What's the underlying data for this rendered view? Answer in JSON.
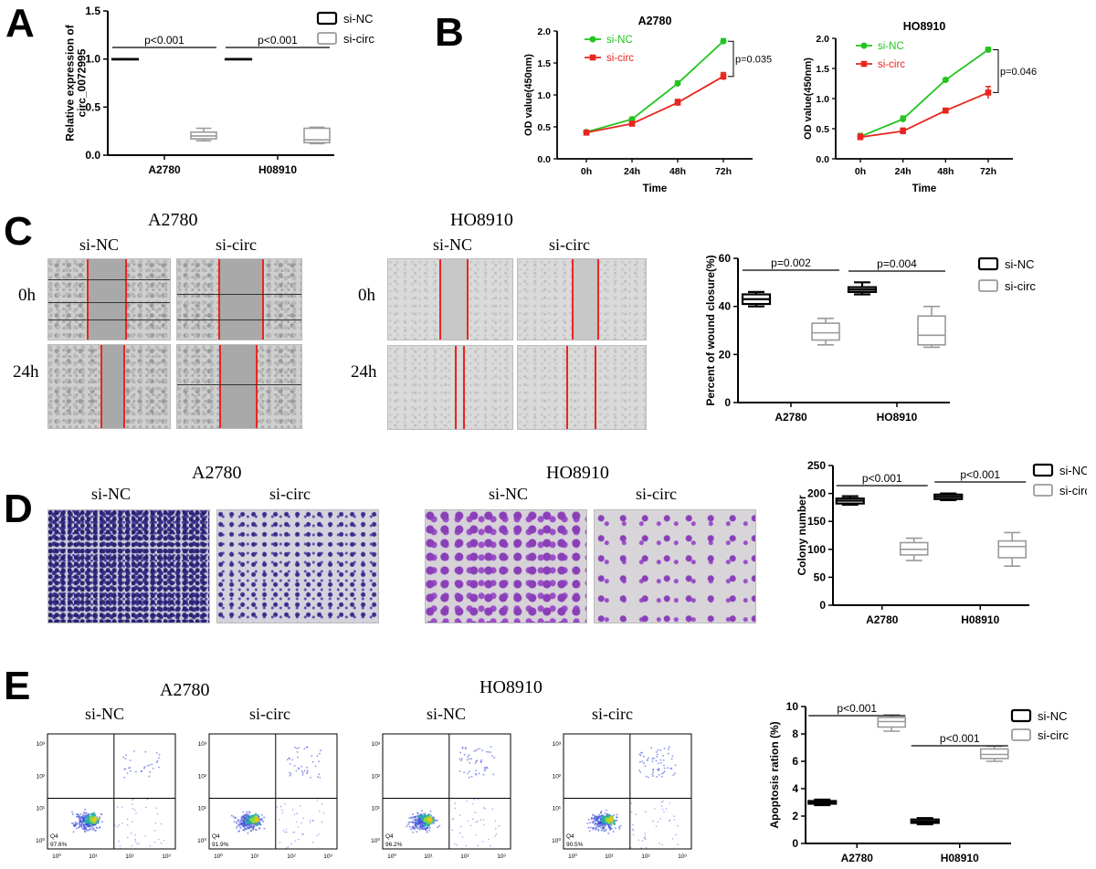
{
  "panels": {
    "A": "A",
    "B": "B",
    "C": "C",
    "D": "D",
    "E": "E"
  },
  "labels": {
    "a2780": "A2780",
    "ho8910": "HO8910",
    "si_nc": "si-NC",
    "si_circ": "si-circ",
    "t0h": "0h",
    "t24h": "24h"
  },
  "chart_data": [
    {
      "id": "A",
      "type": "box",
      "ylabel": "Relative expression of circ_0072995",
      "ylim": [
        0,
        1.5
      ],
      "yticks": [
        "0.0",
        "0.5",
        "1.0",
        "1.5"
      ],
      "categories": [
        "A2780",
        "H08910"
      ],
      "legend": [
        "si-NC",
        "si-circ"
      ],
      "series": [
        {
          "name": "si-NC",
          "boxes": [
            [
              1.0,
              1.0,
              1.0,
              1.0,
              1.0
            ],
            [
              1.0,
              1.0,
              1.0,
              1.0,
              1.0
            ]
          ]
        },
        {
          "name": "si-circ",
          "boxes": [
            [
              0.15,
              0.17,
              0.2,
              0.24,
              0.28
            ],
            [
              0.12,
              0.13,
              0.16,
              0.28,
              0.29
            ]
          ]
        }
      ],
      "annotations": [
        "p<0.001",
        "p<0.001"
      ]
    },
    {
      "id": "B1",
      "type": "line",
      "title": "A2780",
      "xlabel": "Time",
      "ylabel": "OD value(450nm)",
      "categories": [
        "0h",
        "24h",
        "48h",
        "72h"
      ],
      "yticks": [
        "0.0",
        "0.5",
        "1.0",
        "1.5",
        "2.0"
      ],
      "ylim": [
        0,
        2.0
      ],
      "series": [
        {
          "name": "si-NC",
          "color": "#22c41f",
          "values": [
            0.42,
            0.62,
            1.18,
            1.84
          ],
          "err": [
            0.02,
            0.03,
            0.04,
            0.04
          ]
        },
        {
          "name": "si-circ",
          "color": "#e8261f",
          "values": [
            0.41,
            0.55,
            0.88,
            1.29
          ],
          "err": [
            0.02,
            0.03,
            0.05,
            0.06
          ]
        }
      ],
      "annotation": "p=0.035"
    },
    {
      "id": "B2",
      "type": "line",
      "title": "HO8910",
      "xlabel": "Time",
      "ylabel": "OD value(450nm)",
      "categories": [
        "0h",
        "24h",
        "48h",
        "72h"
      ],
      "yticks": [
        "0.0",
        "0.5",
        "1.0",
        "1.5",
        "2.0"
      ],
      "ylim": [
        0,
        2.0
      ],
      "series": [
        {
          "name": "si-NC",
          "color": "#22c41f",
          "values": [
            0.37,
            0.66,
            1.31,
            1.81
          ],
          "err": [
            0.05,
            0.05,
            0.03,
            0.04
          ]
        },
        {
          "name": "si-circ",
          "color": "#e8261f",
          "values": [
            0.36,
            0.46,
            0.8,
            1.1
          ],
          "err": [
            0.05,
            0.05,
            0.04,
            0.1
          ]
        }
      ],
      "annotation": "p=0.046"
    },
    {
      "id": "C",
      "type": "box",
      "ylabel": "Percent of wound closure(%)",
      "ylim": [
        0,
        60
      ],
      "yticks": [
        "0",
        "20",
        "40",
        "60"
      ],
      "categories": [
        "A2780",
        "HO8910"
      ],
      "legend": [
        "si-NC",
        "si-circ"
      ],
      "series": [
        {
          "name": "si-NC",
          "boxes": [
            [
              40,
              41,
              43,
              45,
              46
            ],
            [
              45,
              46,
              47,
              48,
              50
            ]
          ]
        },
        {
          "name": "si-circ",
          "boxes": [
            [
              24,
              26,
              29,
              33,
              35
            ],
            [
              23,
              24,
              28,
              36,
              40
            ]
          ]
        }
      ],
      "annotations": [
        "p=0.002",
        "p=0.004"
      ]
    },
    {
      "id": "D",
      "type": "box",
      "ylabel": "Colony number",
      "ylim": [
        0,
        250
      ],
      "yticks": [
        "0",
        "50",
        "100",
        "150",
        "200",
        "250"
      ],
      "categories": [
        "A2780",
        "H08910"
      ],
      "legend": [
        "si-NC",
        "si-circ"
      ],
      "series": [
        {
          "name": "si-NC",
          "boxes": [
            [
              180,
              182,
              187,
              191,
              195
            ],
            [
              188,
              190,
              194,
              198,
              200
            ]
          ]
        },
        {
          "name": "si-circ",
          "boxes": [
            [
              80,
              90,
              100,
              112,
              120
            ],
            [
              70,
              85,
              105,
              115,
              130
            ]
          ]
        }
      ],
      "annotations": [
        "p<0.001",
        "p<0.001"
      ]
    },
    {
      "id": "E",
      "type": "box",
      "ylabel": "Apoptosis ration (%)",
      "ylim": [
        0,
        10
      ],
      "yticks": [
        "0",
        "2",
        "4",
        "6",
        "8",
        "10"
      ],
      "categories": [
        "A2780",
        "H08910"
      ],
      "legend": [
        "si-NC",
        "si-circ"
      ],
      "series": [
        {
          "name": "si-NC",
          "boxes": [
            [
              2.8,
              2.9,
              3.0,
              3.1,
              3.2
            ],
            [
              1.4,
              1.5,
              1.6,
              1.75,
              1.85
            ]
          ]
        },
        {
          "name": "si-circ",
          "boxes": [
            [
              8.2,
              8.5,
              8.9,
              9.2,
              9.4
            ],
            [
              6.0,
              6.2,
              6.5,
              6.9,
              7.1
            ]
          ]
        }
      ],
      "annotations": [
        "p<0.001",
        "p<0.001"
      ]
    }
  ],
  "flow": {
    "quadrant_label": "Q4",
    "tick_labels": [
      "10⁰",
      "10¹",
      "10²",
      "10³"
    ],
    "plots": [
      {
        "q4": "97.6%"
      },
      {
        "q4": "91.9%"
      },
      {
        "q4": "96.2%"
      },
      {
        "q4": "90.5%"
      }
    ]
  }
}
